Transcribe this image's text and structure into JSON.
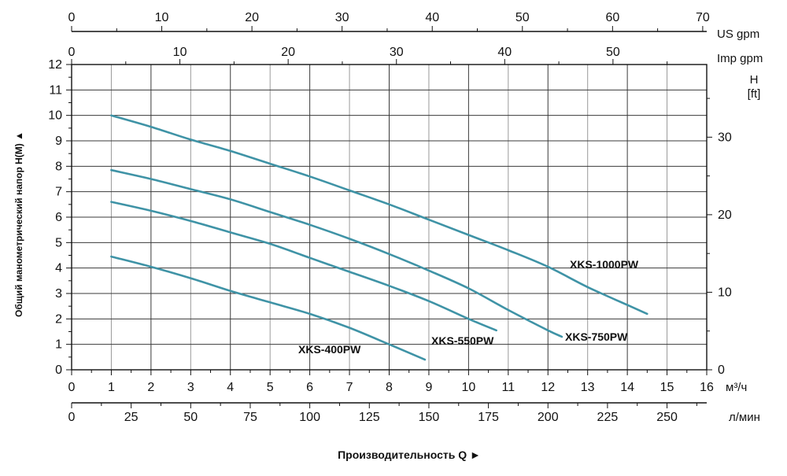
{
  "chart_data": {
    "type": "line",
    "x_unit": "м³/ч",
    "x_ticks": [
      0,
      1,
      2,
      3,
      4,
      5,
      6,
      7,
      8,
      9,
      10,
      11,
      12,
      13,
      14,
      15,
      16
    ],
    "xlim": [
      0,
      16
    ],
    "y_ticks": [
      0,
      1,
      2,
      3,
      4,
      5,
      6,
      7,
      8,
      9,
      10,
      11,
      12
    ],
    "ylim": [
      0,
      12
    ],
    "ylabel_left": "Общий манометрический напор H(M) ▲",
    "xlabel": "Производительность Q ►",
    "right_axis": {
      "unit_line1": "H",
      "unit_line2": "[ft]",
      "ticks": [
        0,
        10,
        20,
        30
      ]
    },
    "top_axis_us": {
      "unit": "US gpm",
      "ticks": [
        0,
        10,
        20,
        30,
        40,
        50,
        60,
        70
      ]
    },
    "top_axis_imp": {
      "unit": "Imp gpm",
      "ticks": [
        0,
        10,
        20,
        30,
        40,
        50
      ]
    },
    "bottom_axis_lmin": {
      "unit": "л/мин",
      "ticks": [
        0,
        25,
        50,
        75,
        100,
        125,
        150,
        175,
        200,
        225,
        250
      ]
    },
    "grid": true,
    "series": [
      {
        "name": "XKS-1000PW",
        "x": [
          1,
          2,
          3,
          4,
          5,
          6,
          7,
          8,
          9,
          10,
          11,
          12,
          13,
          14,
          14.5
        ],
        "y": [
          10,
          9.55,
          9.05,
          8.6,
          8.1,
          7.6,
          7.05,
          6.5,
          5.9,
          5.3,
          4.7,
          4.05,
          3.25,
          2.55,
          2.2
        ]
      },
      {
        "name": "XKS-750PW",
        "x": [
          1,
          2,
          3,
          4,
          5,
          6,
          7,
          8,
          9,
          10,
          11,
          12,
          12.35
        ],
        "y": [
          7.85,
          7.5,
          7.1,
          6.7,
          6.2,
          5.7,
          5.15,
          4.55,
          3.9,
          3.2,
          2.35,
          1.55,
          1.3
        ]
      },
      {
        "name": "XKS-550PW",
        "x": [
          1,
          2,
          3,
          4,
          5,
          6,
          7,
          8,
          9,
          10,
          10.7
        ],
        "y": [
          6.6,
          6.25,
          5.85,
          5.4,
          4.95,
          4.4,
          3.85,
          3.3,
          2.7,
          2.0,
          1.55
        ]
      },
      {
        "name": "XKS-400PW",
        "x": [
          1,
          2,
          3,
          4,
          5,
          6,
          7,
          8,
          8.9
        ],
        "y": [
          4.45,
          4.05,
          3.6,
          3.1,
          2.65,
          2.2,
          1.65,
          1.0,
          0.4
        ]
      }
    ]
  }
}
